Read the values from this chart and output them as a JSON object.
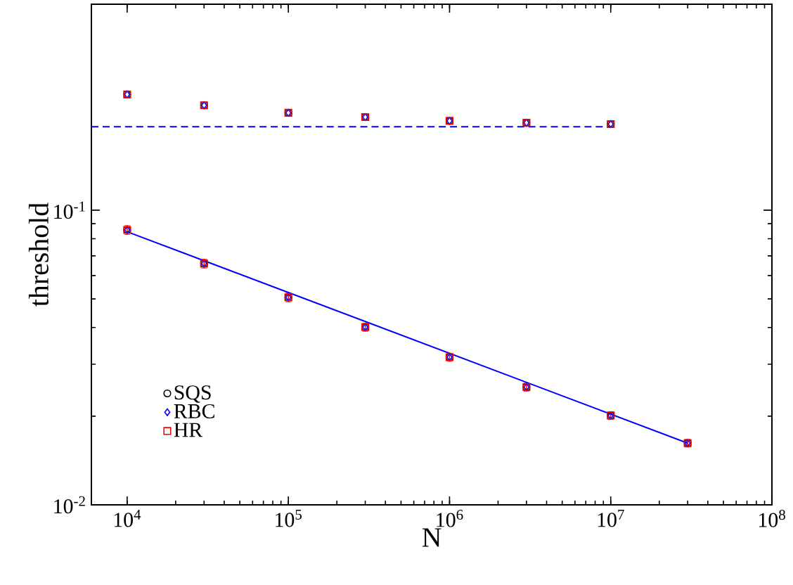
{
  "chart_data": {
    "type": "scatter",
    "xlabel": "N",
    "ylabel": "threshold",
    "log": "xy",
    "grid": false,
    "legend": "bottom left",
    "xlim": [
      6000,
      100000000
    ],
    "ylim": [
      0.01,
      0.5
    ],
    "xticks": [
      {
        "value": 10000,
        "label": "10$^{4}$"
      },
      {
        "value": 100000,
        "label": "10$^{5}$"
      },
      {
        "value": 1000000,
        "label": "10$^{6}$"
      },
      {
        "value": 10000000,
        "label": "10$^{7}$"
      },
      {
        "value": 100000000,
        "label": "10$^{8}$"
      }
    ],
    "yticks": [
      {
        "value": 0.01,
        "label": "10$^{-2}$"
      },
      {
        "value": 0.1,
        "label": "10$^{-1}$"
      }
    ],
    "series": [
      {
        "name": "SQS",
        "color": "#000000",
        "marker": "circle",
        "x": [
          10000,
          30000,
          100000,
          300000,
          1000000,
          3000000,
          10000000,
          10000,
          30000,
          100000,
          300000,
          1000000,
          3000000,
          10000000,
          30000000
        ],
        "values": [
          0.247,
          0.227,
          0.214,
          0.207,
          0.201,
          0.198,
          0.196,
          0.0857,
          0.0659,
          0.0506,
          0.0401,
          0.0317,
          0.0251,
          0.0201,
          0.0162
        ]
      },
      {
        "name": "RBC",
        "color": "#0000ff",
        "marker": "diamond",
        "x": [
          10000,
          30000,
          100000,
          300000,
          1000000,
          3000000,
          10000000,
          10000,
          30000,
          100000,
          300000,
          1000000,
          3000000,
          10000000,
          30000000
        ],
        "values": [
          0.247,
          0.227,
          0.214,
          0.207,
          0.201,
          0.198,
          0.196,
          0.0857,
          0.0659,
          0.0506,
          0.0401,
          0.0317,
          0.0251,
          0.0201,
          0.0162
        ]
      },
      {
        "name": "HR",
        "color": "#ff0000",
        "marker": "square",
        "x": [
          10000,
          30000,
          100000,
          300000,
          1000000,
          3000000,
          10000000,
          10000,
          30000,
          100000,
          300000,
          1000000,
          3000000,
          10000000,
          30000000
        ],
        "values": [
          0.247,
          0.227,
          0.214,
          0.207,
          0.201,
          0.198,
          0.196,
          0.0857,
          0.0659,
          0.0506,
          0.0401,
          0.0317,
          0.0251,
          0.0201,
          0.0162
        ],
        "errors": [
          null,
          null,
          null,
          null,
          null,
          null,
          null,
          0.003,
          0.0023,
          0.0018,
          0.0013,
          0.001,
          0.0008,
          0.0006,
          0.0005
        ]
      },
      {
        "type": "line",
        "color": "#0000ff",
        "marker": "none",
        "line_style": "solid",
        "x": [
          10000,
          30000000
        ],
        "values": [
          0.0845,
          0.0162
        ]
      },
      {
        "type": "line",
        "color": "#0000ff",
        "marker": "none",
        "line_style": "dashed",
        "x": [
          6000,
          10000000
        ],
        "values": [
          0.192,
          0.192
        ]
      }
    ]
  }
}
